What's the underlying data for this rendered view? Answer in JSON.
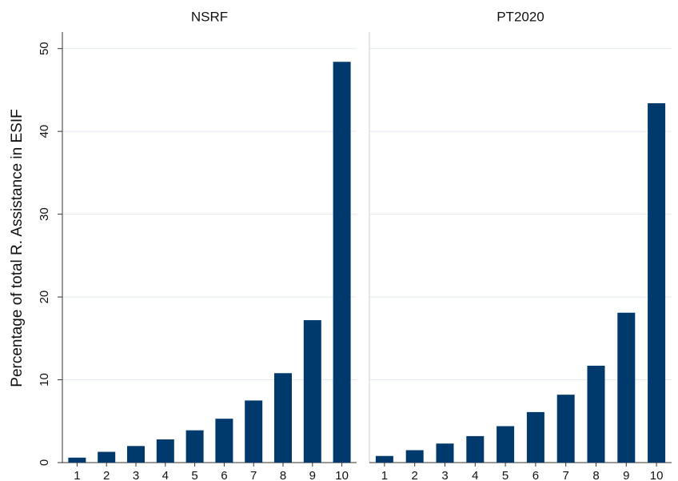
{
  "chart_data": [
    {
      "type": "bar",
      "title": "NSRF",
      "y_label": "Percentage of total R. Assistance in ESIF",
      "categories": [
        "1",
        "2",
        "3",
        "4",
        "5",
        "6",
        "7",
        "8",
        "9",
        "10"
      ],
      "values": [
        0.6,
        1.3,
        2.0,
        2.8,
        3.9,
        5.3,
        7.5,
        10.8,
        17.2,
        48.4
      ],
      "color": "#003a6c",
      "ylim": [
        0,
        52
      ],
      "yticks": [
        0,
        10,
        20,
        30,
        40,
        50
      ],
      "grid": true
    },
    {
      "type": "bar",
      "title": "PT2020",
      "categories": [
        "1",
        "2",
        "3",
        "4",
        "5",
        "6",
        "7",
        "8",
        "9",
        "10"
      ],
      "values": [
        0.8,
        1.5,
        2.3,
        3.2,
        4.4,
        6.1,
        8.2,
        11.7,
        18.1,
        43.4
      ],
      "color": "#003a6c",
      "ylim": [
        0,
        52
      ],
      "yticks": [
        0,
        10,
        20,
        30,
        40,
        50
      ],
      "grid": true
    }
  ]
}
